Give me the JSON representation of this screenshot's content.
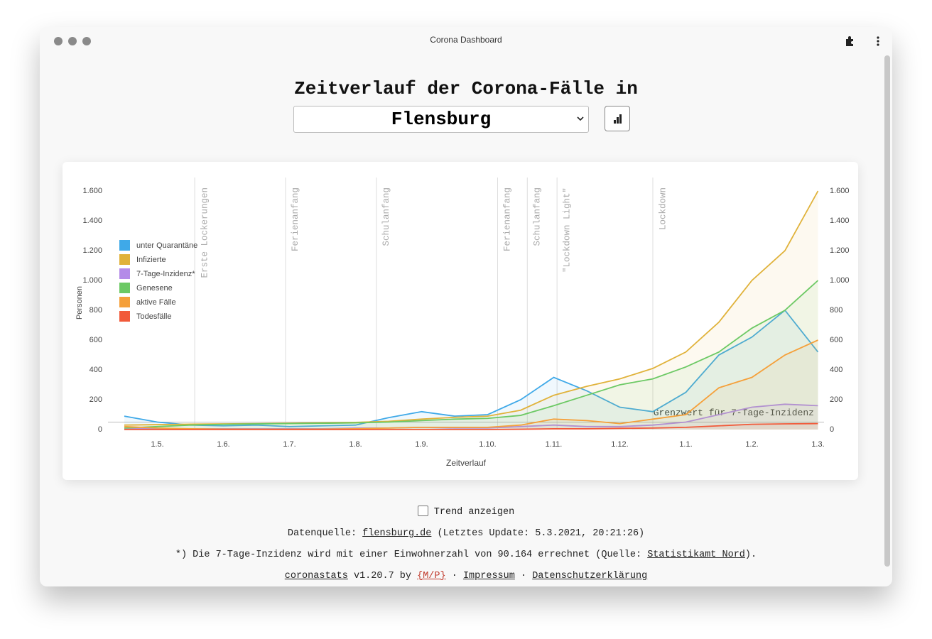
{
  "window": {
    "title": "Corona Dashboard"
  },
  "header": {
    "title": "Zeitverlauf der Corona-Fälle in",
    "region": "Flensburg"
  },
  "chart_data": {
    "type": "line",
    "y_label": "Personen",
    "x_label": "Zeitverlauf",
    "categories": [
      null,
      "1.5.",
      null,
      "1.6.",
      null,
      "1.7.",
      null,
      "1.8.",
      null,
      "1.9.",
      null,
      "1.10.",
      null,
      "1.11.",
      null,
      "1.12.",
      null,
      "1.1.",
      null,
      "1.2.",
      null,
      "1.3."
    ],
    "series": [
      {
        "name": "unter Quarantäne",
        "color": "#3fa9e8",
        "values": [
          90,
          50,
          30,
          25,
          30,
          20,
          25,
          30,
          80,
          120,
          90,
          100,
          200,
          350,
          260,
          150,
          120,
          250,
          500,
          620,
          800,
          520
        ]
      },
      {
        "name": "Infizierte",
        "color": "#e0b23a",
        "values": [
          30,
          33,
          36,
          38,
          40,
          42,
          45,
          48,
          55,
          70,
          82,
          90,
          130,
          230,
          290,
          340,
          410,
          520,
          720,
          1000,
          1200,
          1600
        ]
      },
      {
        "name": "7-Tage-Inzidenz*",
        "color": "#b48be8",
        "values": [
          5,
          5,
          5,
          5,
          5,
          5,
          5,
          10,
          10,
          15,
          10,
          10,
          20,
          30,
          20,
          20,
          30,
          50,
          100,
          150,
          170,
          160
        ]
      },
      {
        "name": "Genesene",
        "color": "#6cc964",
        "values": [
          10,
          20,
          30,
          35,
          38,
          40,
          42,
          45,
          50,
          60,
          70,
          75,
          95,
          160,
          230,
          300,
          340,
          420,
          520,
          680,
          800,
          1000
        ]
      },
      {
        "name": "aktive Fälle",
        "color": "#f5a03a",
        "values": [
          20,
          10,
          5,
          3,
          2,
          2,
          3,
          5,
          10,
          15,
          15,
          15,
          30,
          70,
          60,
          40,
          70,
          100,
          280,
          350,
          500,
          600
        ]
      },
      {
        "name": "Todesfälle",
        "color": "#f15a3a",
        "values": [
          0,
          0,
          0,
          0,
          0,
          0,
          0,
          0,
          0,
          0,
          0,
          0,
          2,
          5,
          5,
          8,
          10,
          15,
          25,
          35,
          38,
          40
        ]
      }
    ],
    "ylim": [
      0,
      1700
    ],
    "yticks": [
      0,
      200,
      400,
      600,
      800,
      {
        "value": 1000,
        "label": "1.000"
      },
      {
        "value": 1200,
        "label": "1.200"
      },
      {
        "value": 1400,
        "label": "1.400"
      },
      {
        "value": 1600,
        "label": "1.600"
      }
    ],
    "y2lim": [
      0,
      1700
    ],
    "y2ticks": [
      0,
      200,
      400,
      600,
      800,
      {
        "value": 1000,
        "label": "1.000"
      },
      {
        "value": 1200,
        "label": "1.200"
      },
      {
        "value": 1400,
        "label": "1.400"
      },
      {
        "value": 1600,
        "label": "1.600"
      }
    ],
    "events": [
      {
        "label": "Erste Lockerungen",
        "x": 2.13
      },
      {
        "label": "Ferienanfang",
        "x": 4.88
      },
      {
        "label": "Schulanfang",
        "x": 7.63
      },
      {
        "label": "Ferienanfang",
        "x": 11.3
      },
      {
        "label": "Schulanfang",
        "x": 12.2
      },
      {
        "label": "\"Lockdown Light\"",
        "x": 13.1
      },
      {
        "label": "Lockdown",
        "x": 16.0
      }
    ],
    "threshold": {
      "label": "Grenzwert für 7-Tage-Inzidenz",
      "value": 50
    },
    "legend": "upper left",
    "fill_area": true
  },
  "footer": {
    "trend": "Trend anzeigen",
    "source": [
      "Datenquelle:",
      "flensburg.de",
      "(Letztes Update: 5.3.2021, 20:21:26)"
    ],
    "note": [
      "*) Die 7-Tage-Inzidenz wird mit einer Einwohnerzahl von 90.164 errechnet (Quelle:",
      "Statistikamt Nord",
      ")."
    ],
    "credits": [
      "coronastats",
      "v1.20.7 by",
      "{M/P}",
      "·",
      "Impressum",
      "·",
      "Datenschutzerklärung"
    ]
  }
}
